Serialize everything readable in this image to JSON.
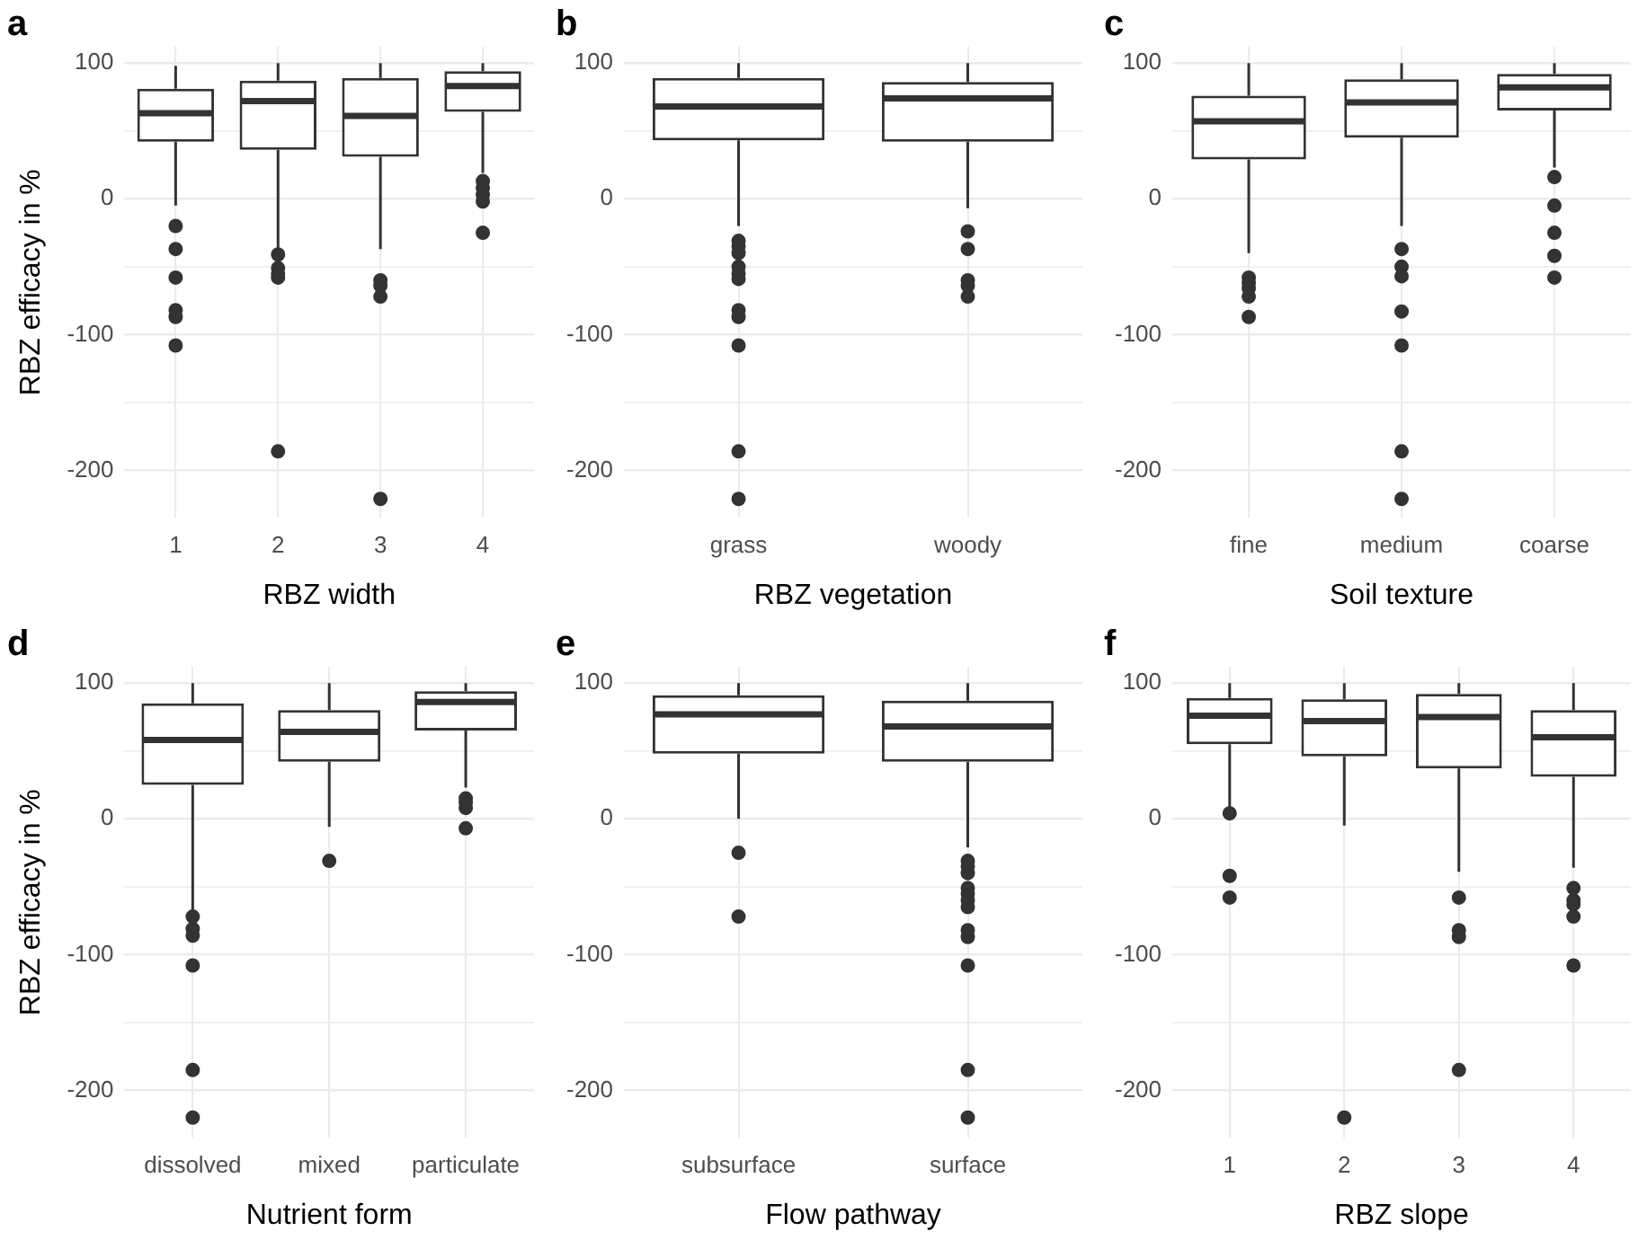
{
  "chart_data": [
    {
      "type": "box",
      "title": "a",
      "xlabel": "RBZ width",
      "ylabel": "RBZ efficacy in %",
      "categories": [
        "1",
        "2",
        "3",
        "4"
      ],
      "color": "#333333",
      "grid": true,
      "ylim": [
        -235,
        112
      ],
      "yticks": [
        {
          "value": -150,
          "label": null
        },
        {
          "value": -50,
          "label": null
        },
        {
          "value": 50,
          "label": null
        },
        -200,
        -100,
        0,
        100
      ],
      "boxes": [
        {
          "low": -5,
          "q1": 42,
          "median": 63,
          "q3": 81,
          "high": 98,
          "outliers": [
            -20,
            -37,
            -58,
            -82,
            -87,
            -108
          ]
        },
        {
          "low": -38,
          "q1": 36,
          "median": 72,
          "q3": 87,
          "high": 100,
          "outliers": [
            -41,
            -51,
            -55,
            -58,
            -186
          ]
        },
        {
          "low": -37,
          "q1": 31,
          "median": 61,
          "q3": 89,
          "high": 100,
          "outliers": [
            -60,
            -64,
            -72,
            -221
          ]
        },
        {
          "low": 19,
          "q1": 64,
          "median": 83,
          "q3": 94,
          "high": 100,
          "outliers": [
            13,
            8,
            3,
            -2,
            -25
          ]
        }
      ]
    },
    {
      "type": "box",
      "title": "b",
      "xlabel": "RBZ vegetation",
      "categories": [
        "grass",
        "woody"
      ],
      "color": "#333333",
      "grid": true,
      "ylim": [
        -235,
        112
      ],
      "yticks": [
        {
          "value": -150,
          "label": null
        },
        {
          "value": -50,
          "label": null
        },
        {
          "value": 50,
          "label": null
        },
        -200,
        -100,
        0,
        100
      ],
      "boxes": [
        {
          "low": -20,
          "q1": 43,
          "median": 68,
          "q3": 89,
          "high": 100,
          "outliers": [
            -31,
            -35,
            -40,
            -50,
            -55,
            -59,
            -82,
            -87,
            -108,
            -186,
            -221
          ]
        },
        {
          "low": -7,
          "q1": 42,
          "median": 74,
          "q3": 86,
          "high": 100,
          "outliers": [
            -24,
            -37,
            -60,
            -64,
            -72
          ]
        }
      ]
    },
    {
      "type": "box",
      "title": "c",
      "xlabel": "Soil texture",
      "categories": [
        "fine",
        "medium",
        "coarse"
      ],
      "color": "#333333",
      "grid": true,
      "ylim": [
        -235,
        112
      ],
      "yticks": [
        {
          "value": -150,
          "label": null
        },
        {
          "value": -50,
          "label": null
        },
        {
          "value": 50,
          "label": null
        },
        -200,
        -100,
        0,
        100
      ],
      "boxes": [
        {
          "low": -40,
          "q1": 29,
          "median": 57,
          "q3": 76,
          "high": 100,
          "outliers": [
            -58,
            -62,
            -66,
            -72,
            -87
          ]
        },
        {
          "low": -20,
          "q1": 45,
          "median": 71,
          "q3": 88,
          "high": 100,
          "outliers": [
            -37,
            -50,
            -57,
            -83,
            -108,
            -186,
            -221
          ]
        },
        {
          "low": 23,
          "q1": 65,
          "median": 82,
          "q3": 92,
          "high": 100,
          "outliers": [
            16,
            -5,
            -25,
            -42,
            -58
          ]
        }
      ]
    },
    {
      "type": "box",
      "title": "d",
      "xlabel": "Nutrient form",
      "ylabel": "RBZ efficacy in %",
      "categories": [
        "dissolved",
        "mixed",
        "particulate"
      ],
      "color": "#333333",
      "grid": true,
      "ylim": [
        -235,
        112
      ],
      "yticks": [
        {
          "value": -150,
          "label": null
        },
        {
          "value": -50,
          "label": null
        },
        {
          "value": 50,
          "label": null
        },
        -200,
        -100,
        0,
        100
      ],
      "boxes": [
        {
          "low": -67,
          "q1": 25,
          "median": 58,
          "q3": 85,
          "high": 100,
          "outliers": [
            -72,
            -81,
            -86,
            -108,
            -185,
            -220
          ]
        },
        {
          "low": -6,
          "q1": 42,
          "median": 64,
          "q3": 80,
          "high": 100,
          "outliers": [
            -31
          ]
        },
        {
          "low": 23,
          "q1": 65,
          "median": 86,
          "q3": 94,
          "high": 100,
          "outliers": [
            15,
            12,
            8,
            -7
          ]
        }
      ]
    },
    {
      "type": "box",
      "title": "e",
      "xlabel": "Flow pathway",
      "categories": [
        "subsurface",
        "surface"
      ],
      "color": "#333333",
      "grid": true,
      "ylim": [
        -235,
        112
      ],
      "yticks": [
        {
          "value": -150,
          "label": null
        },
        {
          "value": -50,
          "label": null
        },
        {
          "value": 50,
          "label": null
        },
        -200,
        -100,
        0,
        100
      ],
      "boxes": [
        {
          "low": 0,
          "q1": 48,
          "median": 77,
          "q3": 91,
          "high": 100,
          "outliers": [
            -25,
            -72
          ]
        },
        {
          "low": -21,
          "q1": 42,
          "median": 68,
          "q3": 87,
          "high": 100,
          "outliers": [
            -31,
            -35,
            -40,
            -51,
            -55,
            -60,
            -65,
            -82,
            -87,
            -108,
            -185,
            -220
          ]
        }
      ]
    },
    {
      "type": "box",
      "title": "f",
      "xlabel": "RBZ slope",
      "categories": [
        "1",
        "2",
        "3",
        "4"
      ],
      "color": "#333333",
      "grid": true,
      "ylim": [
        -235,
        112
      ],
      "yticks": [
        {
          "value": -150,
          "label": null
        },
        {
          "value": -50,
          "label": null
        },
        {
          "value": 50,
          "label": null
        },
        -200,
        -100,
        0,
        100
      ],
      "boxes": [
        {
          "low": 8,
          "q1": 55,
          "median": 76,
          "q3": 89,
          "high": 100,
          "outliers": [
            4,
            -42,
            -58
          ]
        },
        {
          "low": -5,
          "q1": 46,
          "median": 72,
          "q3": 88,
          "high": 100,
          "outliers": [
            -220
          ]
        },
        {
          "low": -39,
          "q1": 37,
          "median": 75,
          "q3": 92,
          "high": 100,
          "outliers": [
            -58,
            -82,
            -87,
            -185
          ]
        },
        {
          "low": -36,
          "q1": 31,
          "median": 60,
          "q3": 80,
          "high": 100,
          "outliers": [
            -51,
            -60,
            -63,
            -72,
            -108
          ]
        }
      ]
    }
  ]
}
